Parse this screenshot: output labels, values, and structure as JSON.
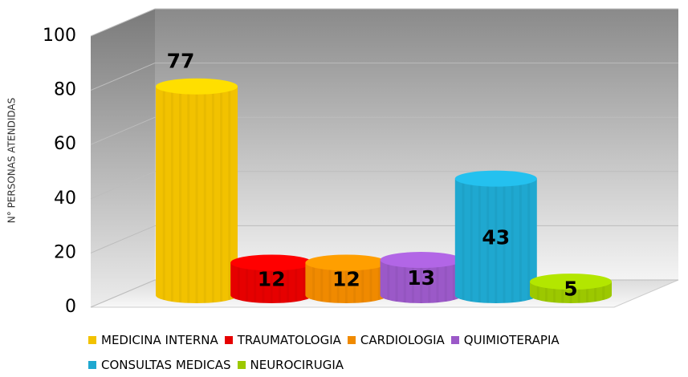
{
  "chart_data": {
    "type": "bar",
    "y_label": "N° PERSONAS ATENDIDAS",
    "categories": [
      "MEDICINA INTERNA",
      "TRAUMATOLOGIA",
      "CARDIOLOGIA",
      "QUIMIOTERAPIA",
      "CONSULTAS MEDICAS",
      "NEUROCIRUGIA"
    ],
    "values": [
      77,
      12,
      12,
      13,
      43,
      5
    ],
    "colors": [
      "#f2c200",
      "#e60000",
      "#f08a00",
      "#9b59c8",
      "#1fa8d0",
      "#9cc800"
    ],
    "ylim": [
      0,
      100
    ],
    "yticks": [
      0,
      20,
      40,
      60,
      80,
      100
    ],
    "grid": true
  }
}
